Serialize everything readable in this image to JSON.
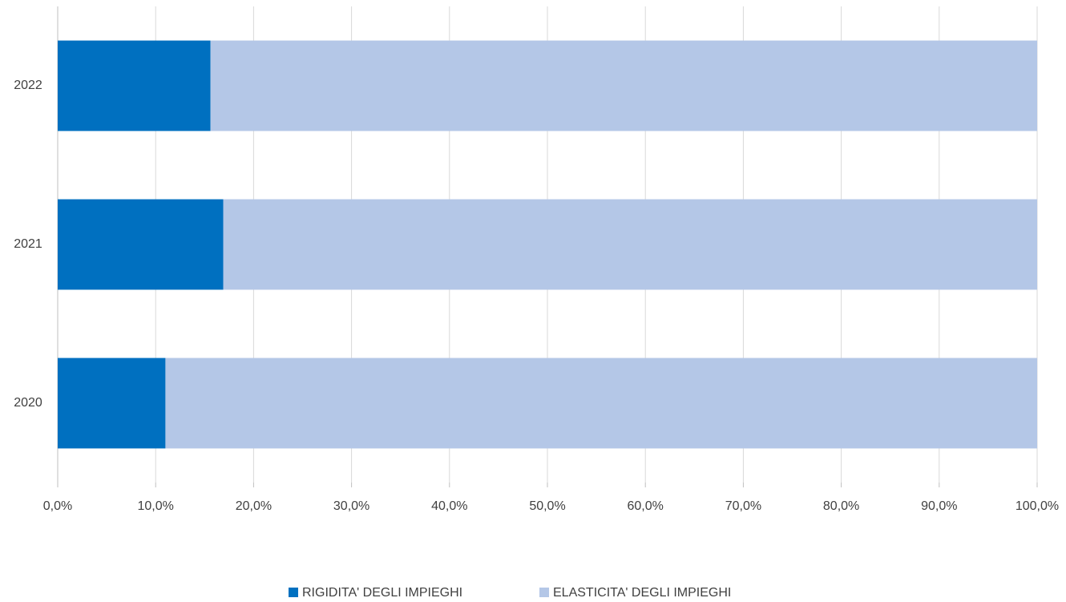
{
  "chart_data": {
    "type": "stacked_barh",
    "categories": [
      "2020",
      "2021",
      "2022"
    ],
    "series": [
      {
        "name": "RIGIDITA' DEGLI IMPIEGHI",
        "color": "#0070c0",
        "values": [
          11.0,
          16.9,
          15.6
        ]
      },
      {
        "name": "ELASTICITA' DEGLI IMPIEGHI",
        "color": "#b4c7e7",
        "values": [
          89.0,
          83.1,
          84.4
        ]
      }
    ],
    "xlim": [
      0,
      100
    ],
    "xticks": [
      {
        "value": 0,
        "label": "0,0%"
      },
      {
        "value": 10,
        "label": "10,0%"
      },
      {
        "value": 20,
        "label": "20,0%"
      },
      {
        "value": 30,
        "label": "30,0%"
      },
      {
        "value": 40,
        "label": "40,0%"
      },
      {
        "value": 50,
        "label": "50,0%"
      },
      {
        "value": 60,
        "label": "60,0%"
      },
      {
        "value": 70,
        "label": "70,0%"
      },
      {
        "value": 80,
        "label": "80,0%"
      },
      {
        "value": 90,
        "label": "90,0%"
      },
      {
        "value": 100,
        "label": "100,0%"
      }
    ],
    "grid": true,
    "legend": "bottom"
  }
}
